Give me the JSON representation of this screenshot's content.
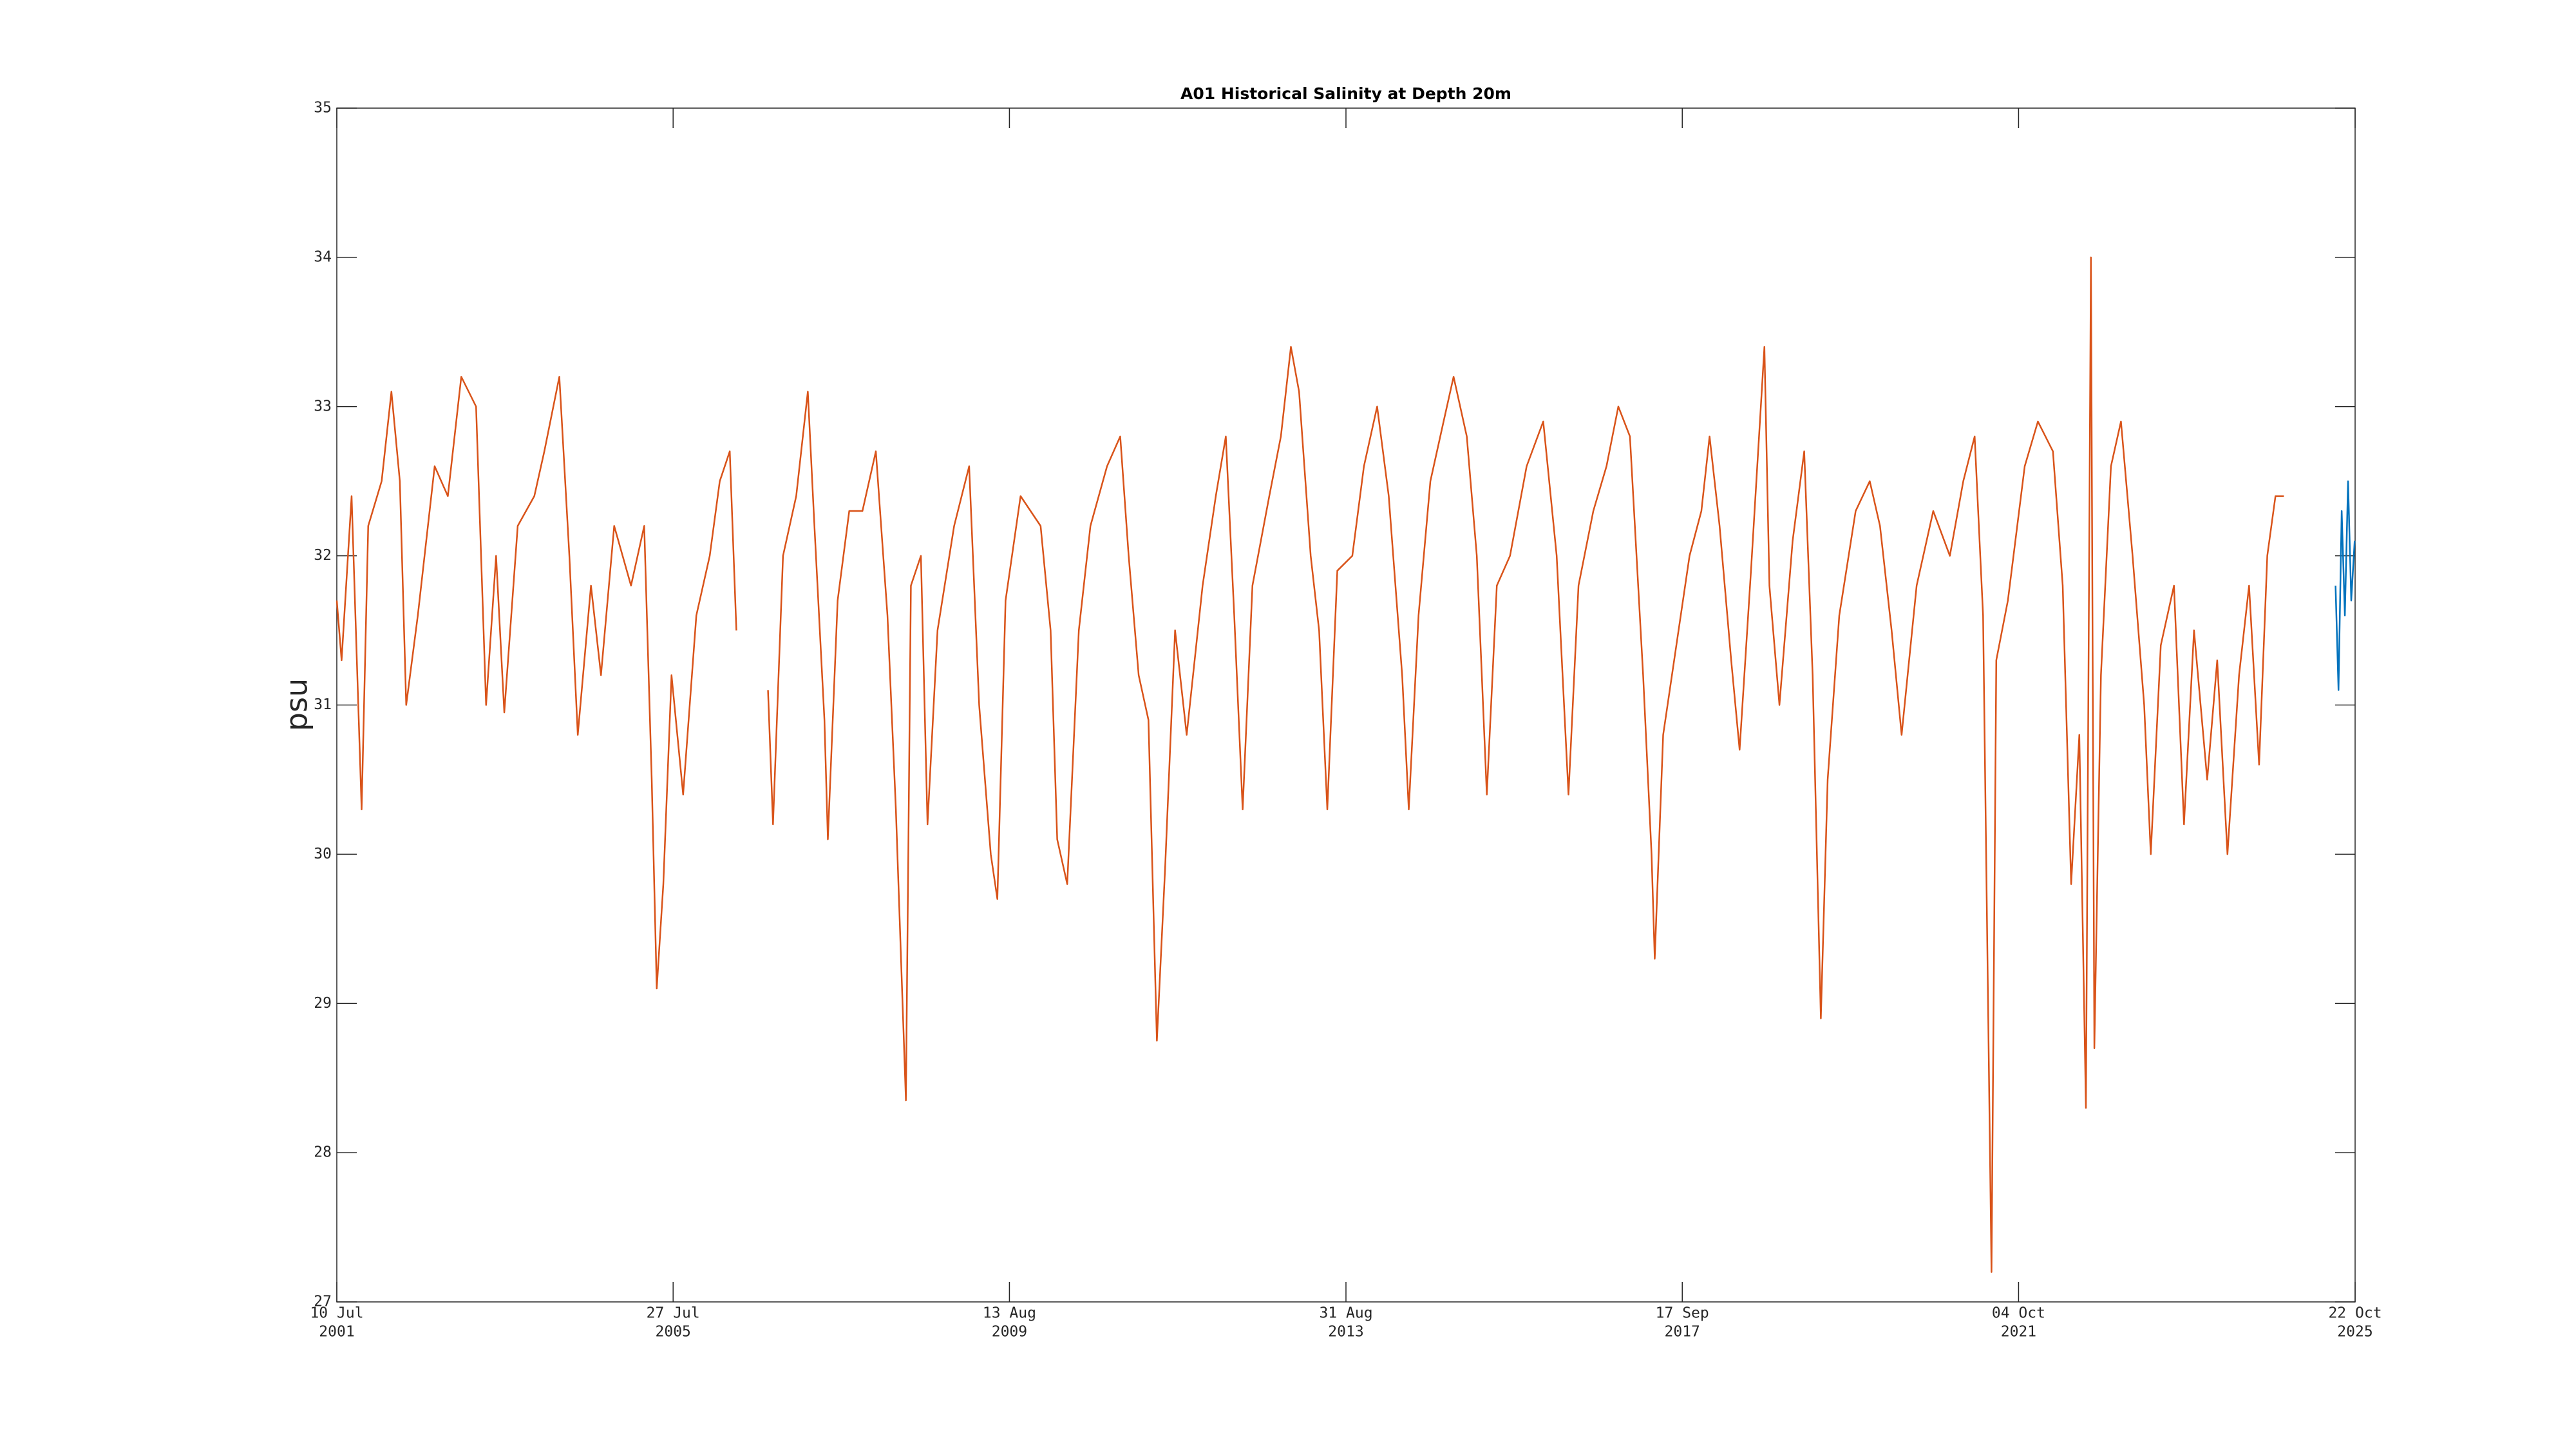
{
  "chart_data": {
    "type": "line",
    "title": "A01 Historical Salinity at Depth 20m",
    "ylabel": "psu",
    "xlim": [
      "2001-07-10",
      "2025-10-22"
    ],
    "xticks": [
      {
        "value": "2001-07-10",
        "label": [
          "10 Jul",
          "2001"
        ]
      },
      {
        "value": "2005-07-27",
        "label": [
          "27 Jul",
          "2005"
        ]
      },
      {
        "value": "2009-08-13",
        "label": [
          "13 Aug",
          "2009"
        ]
      },
      {
        "value": "2013-08-31",
        "label": [
          "31 Aug",
          "2013"
        ]
      },
      {
        "value": "2017-09-17",
        "label": [
          "17 Sep",
          "2017"
        ]
      },
      {
        "value": "2021-10-04",
        "label": [
          "04 Oct",
          "2021"
        ]
      },
      {
        "value": "2025-10-22",
        "label": [
          "22 Oct",
          "2025"
        ]
      }
    ],
    "ylim": [
      27,
      35
    ],
    "yticks": [
      27,
      28,
      29,
      30,
      31,
      32,
      33,
      34,
      35
    ],
    "series": [
      {
        "color": "#d95319",
        "x": [
          "2001-07-10",
          "2001-07-31",
          "2001-09-13",
          "2001-10-27",
          "2001-11-25",
          "2002-01-23",
          "2002-03-07",
          "2002-04-13",
          "2002-05-11",
          "2002-07-01",
          "2002-09-13",
          "2002-11-10",
          "2003-01-08",
          "2003-03-14",
          "2003-04-27",
          "2003-06-10",
          "2003-07-16",
          "2003-09-13",
          "2003-11-25",
          "2004-01-08",
          "2004-03-14",
          "2004-04-27",
          "2004-06-03",
          "2004-07-31",
          "2004-09-13",
          "2004-11-10",
          "2005-01-23",
          "2005-03-22",
          "2005-04-24",
          "2005-05-16",
          "2005-06-14",
          "2005-07-20",
          "2005-09-09",
          "2005-11-06",
          "2006-01-04",
          "2006-02-17",
          "2006-04-02",
          "2006-05-01",
          "2006-06-15",
          "2006-09-17",
          "2006-10-09",
          "2006-11-22",
          "2007-01-19",
          "2007-03-11",
          "2007-04-09",
          "2007-05-23",
          "2007-06-07",
          "2007-07-20",
          "2007-09-09",
          "2007-11-06",
          "2008-01-04",
          "2008-02-24",
          "2008-04-01",
          "2008-05-15",
          "2008-06-06",
          "2008-07-20",
          "2008-08-18",
          "2008-10-01",
          "2008-12-13",
          "2009-02-17",
          "2009-04-02",
          "2009-05-23",
          "2009-06-21",
          "2009-07-27",
          "2009-10-01",
          "2009-12-28",
          "2010-02-10",
          "2010-03-11",
          "2010-04-24",
          "2010-06-14",
          "2010-08-04",
          "2010-10-16",
          "2010-12-13",
          "2011-01-19",
          "2011-03-04",
          "2011-04-16",
          "2011-05-23",
          "2011-06-28",
          "2011-08-11",
          "2011-10-01",
          "2011-12-10",
          "2012-02-06",
          "2012-03-21",
          "2012-04-27",
          "2012-06-03",
          "2012-07-16",
          "2012-09-28",
          "2012-11-18",
          "2013-01-01",
          "2013-02-06",
          "2013-03-29",
          "2013-05-05",
          "2013-06-10",
          "2013-07-24",
          "2013-09-28",
          "2013-11-18",
          "2014-01-15",
          "2014-03-07",
          "2014-05-05",
          "2014-06-03",
          "2014-07-16",
          "2014-09-06",
          "2014-11-03",
          "2014-12-17",
          "2015-02-13",
          "2015-03-29",
          "2015-05-12",
          "2015-06-25",
          "2015-08-22",
          "2015-11-03",
          "2016-01-15",
          "2016-03-14",
          "2016-05-05",
          "2016-06-18",
          "2016-08-22",
          "2016-10-19",
          "2016-12-10",
          "2017-01-30",
          "2017-03-29",
          "2017-05-05",
          "2017-05-19",
          "2017-06-25",
          "2017-08-22",
          "2017-10-19",
          "2017-12-10",
          "2018-01-15",
          "2018-02-28",
          "2018-04-20",
          "2018-05-27",
          "2018-07-16",
          "2018-09-13",
          "2018-10-05",
          "2018-11-18",
          "2019-01-15",
          "2019-03-07",
          "2019-04-13",
          "2019-05-19",
          "2019-06-18",
          "2019-08-08",
          "2019-10-19",
          "2019-12-20",
          "2020-02-03",
          "2020-03-25",
          "2020-05-08",
          "2020-07-13",
          "2020-09-24",
          "2020-12-06",
          "2021-02-03",
          "2021-03-25",
          "2021-05-01",
          "2021-06-07",
          "2021-06-28",
          "2021-08-18",
          "2021-10-31",
          "2021-12-28",
          "2022-03-04",
          "2022-04-16",
          "2022-05-23",
          "2022-06-28",
          "2022-07-27",
          "2022-08-18",
          "2022-09-02",
          "2022-10-01",
          "2022-11-14",
          "2022-12-28",
          "2023-02-17",
          "2023-04-09",
          "2023-05-08",
          "2023-06-21",
          "2023-08-18",
          "2023-10-01",
          "2023-11-14",
          "2024-01-11",
          "2024-02-24",
          "2024-04-09",
          "2024-05-30",
          "2024-07-13",
          "2024-08-26",
          "2024-10-01",
          "2024-11-06",
          "2024-12-13"
        ],
        "values": [
          31.7,
          31.3,
          32.4,
          30.3,
          32.2,
          32.5,
          33.1,
          32.5,
          31.0,
          31.6,
          32.6,
          32.4,
          33.2,
          33.0,
          31.0,
          32.0,
          30.95,
          32.2,
          32.4,
          32.7,
          33.2,
          32.0,
          30.8,
          31.8,
          31.2,
          32.2,
          31.8,
          32.2,
          30.5,
          29.1,
          29.8,
          31.2,
          30.4,
          31.6,
          32.0,
          32.5,
          32.7,
          31.5,
          null,
          31.1,
          30.2,
          32.0,
          32.4,
          33.1,
          32.2,
          30.9,
          30.1,
          31.7,
          32.3,
          32.3,
          32.7,
          31.6,
          30.3,
          28.35,
          31.8,
          32.0,
          30.2,
          31.5,
          32.2,
          32.6,
          31.0,
          30.0,
          29.7,
          31.7,
          32.4,
          32.2,
          31.5,
          30.1,
          29.8,
          31.5,
          32.2,
          32.6,
          32.8,
          32.0,
          31.2,
          30.9,
          28.75,
          29.9,
          31.5,
          30.8,
          31.8,
          32.4,
          32.8,
          31.6,
          30.3,
          31.8,
          32.4,
          32.8,
          33.4,
          33.1,
          32.0,
          31.5,
          30.3,
          31.9,
          32.0,
          32.6,
          33.0,
          32.4,
          31.2,
          30.3,
          31.6,
          32.5,
          32.9,
          33.2,
          32.8,
          32.0,
          30.4,
          31.8,
          32.0,
          32.6,
          32.9,
          32.0,
          30.4,
          31.8,
          32.3,
          32.6,
          33.0,
          32.8,
          31.2,
          30.0,
          29.3,
          30.8,
          31.4,
          32.0,
          32.3,
          32.8,
          32.2,
          31.3,
          30.7,
          31.9,
          33.4,
          31.8,
          31.0,
          32.1,
          32.7,
          31.2,
          28.9,
          30.5,
          31.6,
          32.3,
          32.5,
          32.2,
          31.5,
          30.8,
          31.8,
          32.3,
          32.0,
          32.5,
          32.8,
          31.6,
          27.2,
          31.3,
          31.7,
          32.6,
          32.9,
          32.7,
          31.8,
          29.8,
          30.8,
          28.3,
          34.0,
          28.7,
          31.2,
          32.6,
          32.9,
          32.0,
          31.0,
          30.0,
          31.4,
          31.8,
          30.2,
          31.5,
          30.5,
          31.3,
          30.0,
          31.2,
          31.8,
          30.6,
          32.0,
          32.4,
          32.4
        ]
      },
      {
        "color": "#0072bd",
        "x": [
          "2025-07-28",
          "2025-08-10",
          "2025-08-24",
          "2025-09-07",
          "2025-09-21",
          "2025-10-05",
          "2025-10-20"
        ],
        "values": [
          31.8,
          31.1,
          32.3,
          31.6,
          32.5,
          31.7,
          32.1
        ]
      }
    ]
  }
}
